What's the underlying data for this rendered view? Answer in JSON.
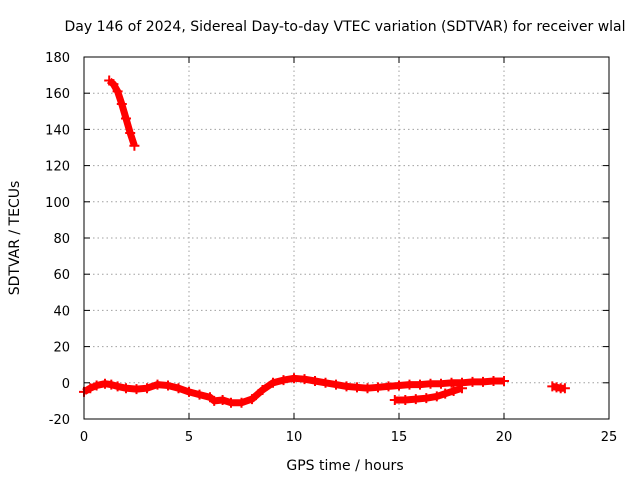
{
  "chart_data": {
    "type": "scatter",
    "title": "Day 146 of 2024, Sidereal Day-to-day VTEC variation (SDTVAR) for receiver wlal",
    "xlabel": "GPS time / hours",
    "ylabel": "SDTVAR / TECUs",
    "xlim": [
      0,
      25
    ],
    "ylim": [
      -20,
      180
    ],
    "xticks": [
      0,
      5,
      10,
      15,
      20,
      25
    ],
    "yticks": [
      -20,
      0,
      20,
      40,
      60,
      80,
      100,
      120,
      140,
      160,
      180
    ],
    "grid": true,
    "legend": "none",
    "marker_color": "#ff0000",
    "series": [
      {
        "points": [
          [
            1.2,
            167
          ],
          [
            1.4,
            165
          ],
          [
            1.6,
            161
          ],
          [
            1.8,
            154
          ],
          [
            2.0,
            146
          ],
          [
            2.2,
            138
          ],
          [
            2.4,
            131
          ]
        ]
      },
      {
        "points": [
          [
            0.0,
            -5
          ],
          [
            0.3,
            -3
          ],
          [
            0.6,
            -1.5
          ],
          [
            1.0,
            -0.5
          ],
          [
            1.3,
            -1
          ],
          [
            1.6,
            -2
          ],
          [
            2.0,
            -3
          ],
          [
            2.5,
            -3.5
          ],
          [
            3.0,
            -3
          ],
          [
            3.5,
            -1
          ],
          [
            4.0,
            -1.5
          ],
          [
            4.5,
            -3
          ],
          [
            5.0,
            -5
          ],
          [
            5.5,
            -6.5
          ],
          [
            6.0,
            -8
          ],
          [
            6.2,
            -10
          ],
          [
            6.6,
            -9.5
          ],
          [
            7.0,
            -11
          ],
          [
            7.5,
            -11
          ],
          [
            8.0,
            -9
          ],
          [
            8.5,
            -4
          ],
          [
            9.0,
            0
          ],
          [
            9.5,
            1.5
          ],
          [
            10.0,
            2.5
          ],
          [
            10.5,
            2
          ],
          [
            11.0,
            1
          ],
          [
            11.5,
            0
          ],
          [
            12.0,
            -1
          ],
          [
            12.5,
            -2
          ],
          [
            13.0,
            -2.5
          ],
          [
            13.5,
            -3
          ],
          [
            14.0,
            -2.5
          ],
          [
            14.5,
            -2
          ],
          [
            15.0,
            -1.5
          ],
          [
            15.5,
            -1
          ],
          [
            16.0,
            -1
          ],
          [
            16.5,
            -0.5
          ],
          [
            17.0,
            -0.5
          ],
          [
            17.5,
            0
          ],
          [
            18.0,
            0
          ],
          [
            18.5,
            0.5
          ],
          [
            19.0,
            0.5
          ],
          [
            19.5,
            1
          ],
          [
            20.0,
            1
          ]
        ]
      },
      {
        "points": [
          [
            14.8,
            -9.5
          ],
          [
            15.3,
            -9.5
          ],
          [
            15.8,
            -9
          ],
          [
            16.3,
            -8.5
          ],
          [
            16.8,
            -7.5
          ],
          [
            17.2,
            -6
          ],
          [
            17.6,
            -4.5
          ],
          [
            18.0,
            -3
          ]
        ]
      },
      {
        "points": [
          [
            22.3,
            -2
          ],
          [
            22.5,
            -2.5
          ],
          [
            22.7,
            -3
          ],
          [
            22.9,
            -3
          ]
        ]
      }
    ]
  }
}
